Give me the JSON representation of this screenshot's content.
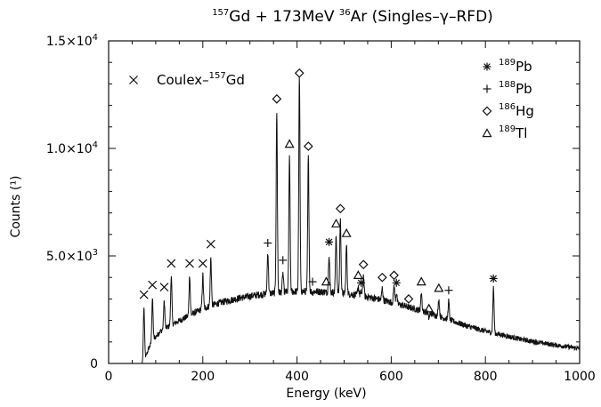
{
  "chart_data": {
    "type": "line",
    "title_parts": [
      {
        "sup": "157",
        "text": "Gd + 173MeV "
      },
      {
        "sup": "36",
        "text": "Ar  (Singles–γ–RFD)"
      }
    ],
    "xlabel": "Energy (keV)",
    "ylabel": "Counts (¹)",
    "xlim": [
      0,
      1000
    ],
    "ylim": [
      0,
      15000
    ],
    "x_ticks": [
      {
        "v": 0,
        "label": "0"
      },
      {
        "v": 200,
        "label": "200"
      },
      {
        "v": 400,
        "label": "400"
      },
      {
        "v": 600,
        "label": "600"
      },
      {
        "v": 800,
        "label": "800"
      },
      {
        "v": 1000,
        "label": "1000"
      }
    ],
    "y_ticks": [
      {
        "v": 0,
        "label": "0"
      },
      {
        "v": 5000,
        "label": "5.0×10",
        "exp": "3"
      },
      {
        "v": 10000,
        "label": "1.0×10",
        "exp": "4"
      },
      {
        "v": 15000,
        "label": "1.5×10",
        "exp": "4"
      }
    ],
    "grid": false,
    "legend_left": {
      "marker": "x",
      "text": "Coulex–",
      "sup": "157",
      "text2": "Gd"
    },
    "legend_right": [
      {
        "marker": "asterisk",
        "sup": "189",
        "text": "Pb"
      },
      {
        "marker": "plus",
        "sup": "188",
        "text": "Pb"
      },
      {
        "marker": "diamond",
        "sup": "186",
        "text": "Hg"
      },
      {
        "marker": "triangle",
        "sup": "189",
        "text": "Tl"
      }
    ],
    "continuum": [
      [
        60,
        0
      ],
      [
        72,
        0
      ],
      [
        78,
        250
      ],
      [
        85,
        700
      ],
      [
        95,
        1100
      ],
      [
        110,
        1500
      ],
      [
        130,
        1750
      ],
      [
        160,
        2100
      ],
      [
        200,
        2550
      ],
      [
        240,
        2850
      ],
      [
        280,
        3050
      ],
      [
        320,
        3200
      ],
      [
        360,
        3300
      ],
      [
        400,
        3350
      ],
      [
        440,
        3350
      ],
      [
        480,
        3300
      ],
      [
        520,
        3200
      ],
      [
        560,
        3050
      ],
      [
        600,
        2850
      ],
      [
        640,
        2600
      ],
      [
        680,
        2350
      ],
      [
        720,
        2050
      ],
      [
        760,
        1750
      ],
      [
        800,
        1500
      ],
      [
        840,
        1300
      ],
      [
        880,
        1100
      ],
      [
        920,
        950
      ],
      [
        960,
        820
      ],
      [
        1000,
        700
      ]
    ],
    "peaks": [
      {
        "x": 75,
        "y": 2600,
        "marker": "x",
        "my": 3200
      },
      {
        "x": 93,
        "y": 3000,
        "marker": "x",
        "my": 3650
      },
      {
        "x": 118,
        "y": 2900,
        "marker": "x",
        "my": 3550
      },
      {
        "x": 133,
        "y": 4100,
        "marker": "x",
        "my": 4650
      },
      {
        "x": 172,
        "y": 4100,
        "marker": "x",
        "my": 4650
      },
      {
        "x": 200,
        "y": 4100,
        "marker": "x",
        "my": 4650
      },
      {
        "x": 217,
        "y": 4900,
        "marker": "x",
        "my": 5550
      },
      {
        "x": 338,
        "y": 5200,
        "marker": "plus",
        "my": 5600
      },
      {
        "x": 357,
        "y": 11700,
        "marker": "diamond",
        "my": 12300
      },
      {
        "x": 370,
        "y": 4200,
        "marker": "plus",
        "my": 4800
      },
      {
        "x": 384,
        "y": 9600,
        "marker": "triangle",
        "my": 10200
      },
      {
        "x": 405,
        "y": 13400,
        "marker": "diamond",
        "my": 13500
      },
      {
        "x": 424,
        "y": 9600,
        "marker": "diamond",
        "my": 10100
      },
      {
        "x": 433,
        "y": 3300,
        "marker": "plus",
        "my": 3800
      },
      {
        "x": 462,
        "y": 3300,
        "marker": "triangle",
        "my": 3800
      },
      {
        "x": 468,
        "y": 5100,
        "marker": "asterisk",
        "my": 5650
      },
      {
        "x": 483,
        "y": 6000,
        "marker": "triangle",
        "my": 6500
      },
      {
        "x": 492,
        "y": 6700,
        "marker": "diamond",
        "my": 7200
      },
      {
        "x": 505,
        "y": 5500,
        "marker": "triangle",
        "my": 6050
      },
      {
        "x": 530,
        "y": 3600,
        "marker": "triangle",
        "my": 4100
      },
      {
        "x": 536,
        "y": 3300,
        "marker": "asterisk",
        "my": 3750
      },
      {
        "x": 541,
        "y": 4100,
        "marker": "diamond",
        "my": 4600
      },
      {
        "x": 581,
        "y": 3500,
        "marker": "diamond",
        "my": 4000
      },
      {
        "x": 606,
        "y": 3600,
        "marker": "diamond",
        "my": 4100
      },
      {
        "x": 611,
        "y": 3300,
        "marker": "asterisk",
        "my": 3750
      },
      {
        "x": 637,
        "y": 2600,
        "marker": "diamond",
        "my": 3000
      },
      {
        "x": 664,
        "y": 3300,
        "marker": "triangle",
        "my": 3800
      },
      {
        "x": 680,
        "y": 2100,
        "marker": "triangle",
        "my": 2550
      },
      {
        "x": 701,
        "y": 3000,
        "marker": "triangle",
        "my": 3500
      },
      {
        "x": 722,
        "y": 2900,
        "marker": "plus",
        "my": 3400
      },
      {
        "x": 817,
        "y": 3500,
        "marker": "asterisk",
        "my": 3950
      }
    ]
  }
}
